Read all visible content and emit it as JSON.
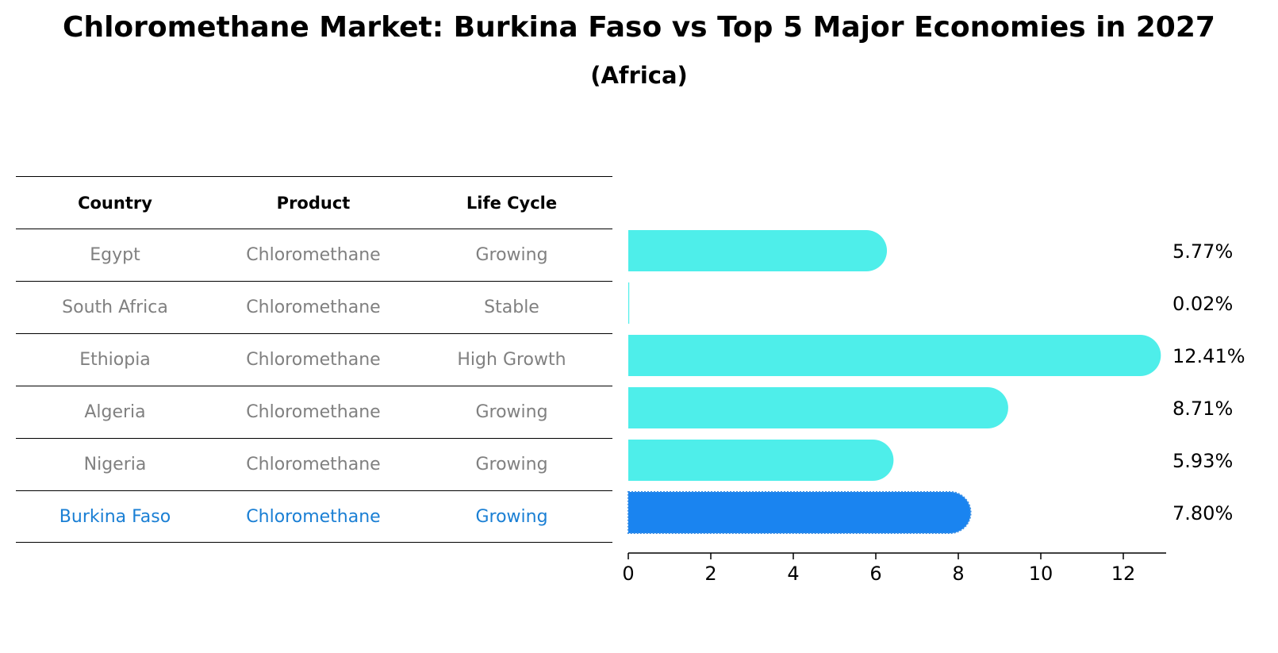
{
  "title": "Chloromethane Market: Burkina Faso vs Top 5 Major Economies in 2027",
  "subtitle": "(Africa)",
  "table": {
    "headers": [
      "Country",
      "Product",
      "Life Cycle"
    ],
    "rows": [
      [
        "Egypt",
        "Chloromethane",
        "Growing"
      ],
      [
        "South Africa",
        "Chloromethane",
        "Stable"
      ],
      [
        "Ethiopia",
        "Chloromethane",
        "High Growth"
      ],
      [
        "Algeria",
        "Chloromethane",
        "Growing"
      ],
      [
        "Nigeria",
        "Chloromethane",
        "Growing"
      ],
      [
        "Burkina Faso",
        "Chloromethane",
        "Growing"
      ]
    ]
  },
  "chart_data": {
    "type": "bar",
    "orientation": "horizontal",
    "categories": [
      "Egypt",
      "South Africa",
      "Ethiopia",
      "Algeria",
      "Nigeria",
      "Burkina Faso"
    ],
    "values": [
      5.77,
      0.02,
      12.41,
      8.71,
      5.93,
      7.8
    ],
    "value_labels": [
      "5.77%",
      "0.02%",
      "12.41%",
      "8.71%",
      "5.93%",
      "7.80%"
    ],
    "highlight_index": 5,
    "xlim": [
      0,
      13
    ],
    "xticks": [
      0,
      2,
      4,
      6,
      8,
      10,
      12
    ],
    "grid": false,
    "colors": {
      "default": "#4eeeea",
      "highlight": "#1a84f0"
    }
  }
}
